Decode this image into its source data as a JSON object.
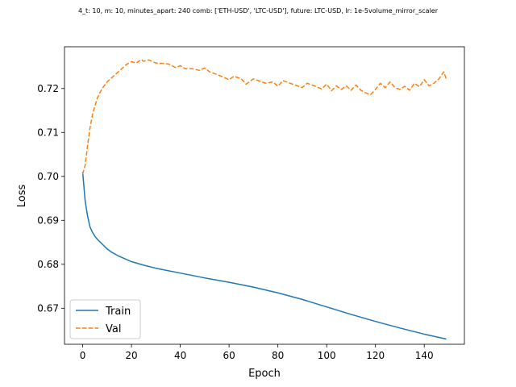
{
  "chart_data": {
    "type": "line",
    "title": "4_t: 10, m: 10, minutes_apart: 240 comb: ['ETH-USD', 'LTC-USD'], future: LTC-USD, lr: 1e-5volume_mirror_scaler",
    "xlabel": "Epoch",
    "ylabel": "Loss",
    "xlim": [
      -7.45,
      156.45
    ],
    "ylim": [
      0.6618,
      0.7295
    ],
    "xticks": [
      0,
      20,
      40,
      60,
      80,
      100,
      120,
      140
    ],
    "yticks": [
      0.67,
      0.68,
      0.69,
      0.7,
      0.71,
      0.72
    ],
    "ytick_labels": [
      "0.67",
      "0.68",
      "0.69",
      "0.70",
      "0.71",
      "0.72"
    ],
    "grid": false,
    "legend_position": "lower-left",
    "series": [
      {
        "name": "Train",
        "color": "#1f77b4",
        "linestyle": "solid",
        "x": [
          0,
          1,
          2,
          3,
          4,
          5,
          6,
          8,
          10,
          12,
          15,
          20,
          25,
          30,
          40,
          50,
          60,
          70,
          80,
          90,
          100,
          110,
          120,
          130,
          140,
          149
        ],
        "y": [
          0.701,
          0.6945,
          0.691,
          0.6885,
          0.6873,
          0.6864,
          0.6857,
          0.6846,
          0.6835,
          0.6827,
          0.6818,
          0.6806,
          0.6798,
          0.6791,
          0.678,
          0.6769,
          0.6759,
          0.6748,
          0.6735,
          0.672,
          0.6703,
          0.6686,
          0.667,
          0.6655,
          0.6641,
          0.663
        ]
      },
      {
        "name": "Val",
        "color": "#ff7f0e",
        "linestyle": "dashed",
        "x": [
          0,
          1,
          2,
          3,
          4,
          5,
          6,
          7,
          8,
          10,
          12,
          14,
          16,
          18,
          20,
          22,
          24,
          25,
          27,
          30,
          33,
          35,
          38,
          40,
          42,
          45,
          48,
          50,
          52,
          55,
          58,
          60,
          62,
          65,
          67,
          70,
          72,
          75,
          78,
          80,
          82,
          85,
          88,
          90,
          92,
          95,
          98,
          100,
          102,
          104,
          106,
          108,
          110,
          112,
          114,
          116,
          118,
          120,
          122,
          124,
          126,
          128,
          130,
          132,
          134,
          136,
          138,
          140,
          142,
          144,
          146,
          148,
          149
        ],
        "y": [
          0.7005,
          0.7025,
          0.707,
          0.711,
          0.714,
          0.716,
          0.7178,
          0.719,
          0.72,
          0.7215,
          0.7225,
          0.7235,
          0.7245,
          0.7255,
          0.7261,
          0.7258,
          0.7266,
          0.7262,
          0.7265,
          0.7258,
          0.7257,
          0.7256,
          0.7248,
          0.7252,
          0.7245,
          0.7245,
          0.7241,
          0.7247,
          0.7238,
          0.7232,
          0.7225,
          0.722,
          0.7228,
          0.7222,
          0.721,
          0.7222,
          0.7218,
          0.7212,
          0.7215,
          0.7205,
          0.7218,
          0.7212,
          0.7206,
          0.7202,
          0.7212,
          0.7206,
          0.7199,
          0.721,
          0.7195,
          0.7206,
          0.7198,
          0.7206,
          0.7196,
          0.7208,
          0.7196,
          0.719,
          0.7186,
          0.7198,
          0.7212,
          0.7202,
          0.7215,
          0.7202,
          0.7198,
          0.7205,
          0.7196,
          0.7212,
          0.7204,
          0.722,
          0.7206,
          0.7212,
          0.7222,
          0.7238,
          0.7222
        ]
      }
    ]
  }
}
